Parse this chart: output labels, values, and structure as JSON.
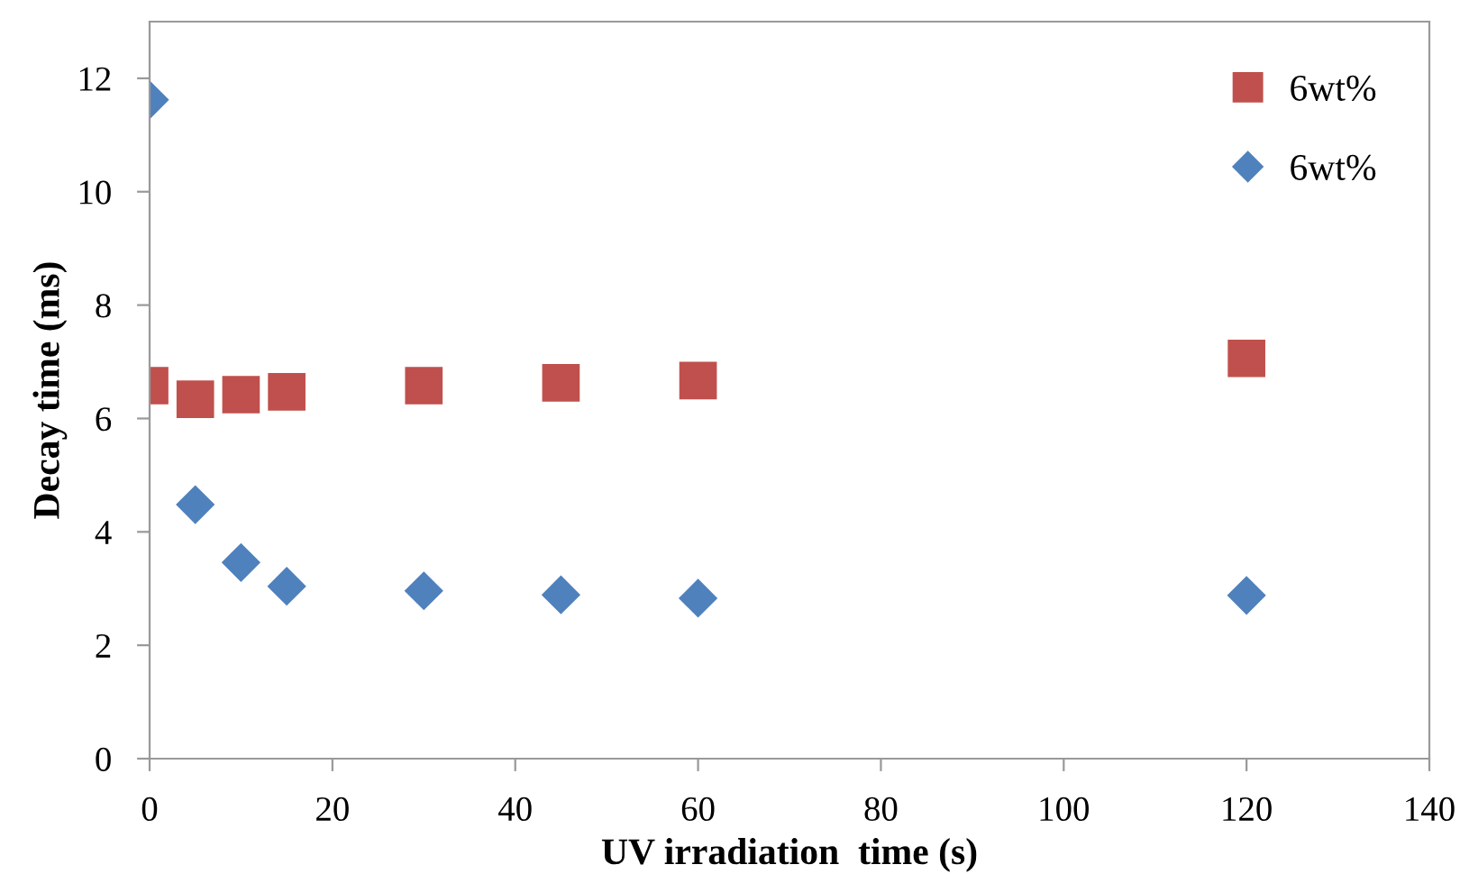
{
  "chart_data": {
    "type": "scatter",
    "xlabel": "UV irradiation  time (s)",
    "ylabel": "Decay time (ms)",
    "x": [
      0,
      5,
      10,
      15,
      30,
      45,
      60,
      120
    ],
    "series": [
      {
        "name": "6wt%",
        "color": "#c0504d",
        "marker": "square",
        "values": [
          6.58,
          6.34,
          6.42,
          6.47,
          6.58,
          6.63,
          6.67,
          7.06
        ]
      },
      {
        "name": "6wt%",
        "color": "#4f81bd",
        "marker": "diamond",
        "values": [
          11.62,
          4.48,
          3.46,
          3.04,
          2.96,
          2.89,
          2.83,
          2.88
        ]
      }
    ],
    "xlim": [
      0,
      140
    ],
    "xticks": [
      0,
      20,
      40,
      60,
      80,
      100,
      120,
      140
    ],
    "ylim": [
      0,
      13
    ],
    "yticks": [
      0,
      2,
      4,
      6,
      8,
      10,
      12
    ],
    "grid": false,
    "legend": "top right"
  }
}
